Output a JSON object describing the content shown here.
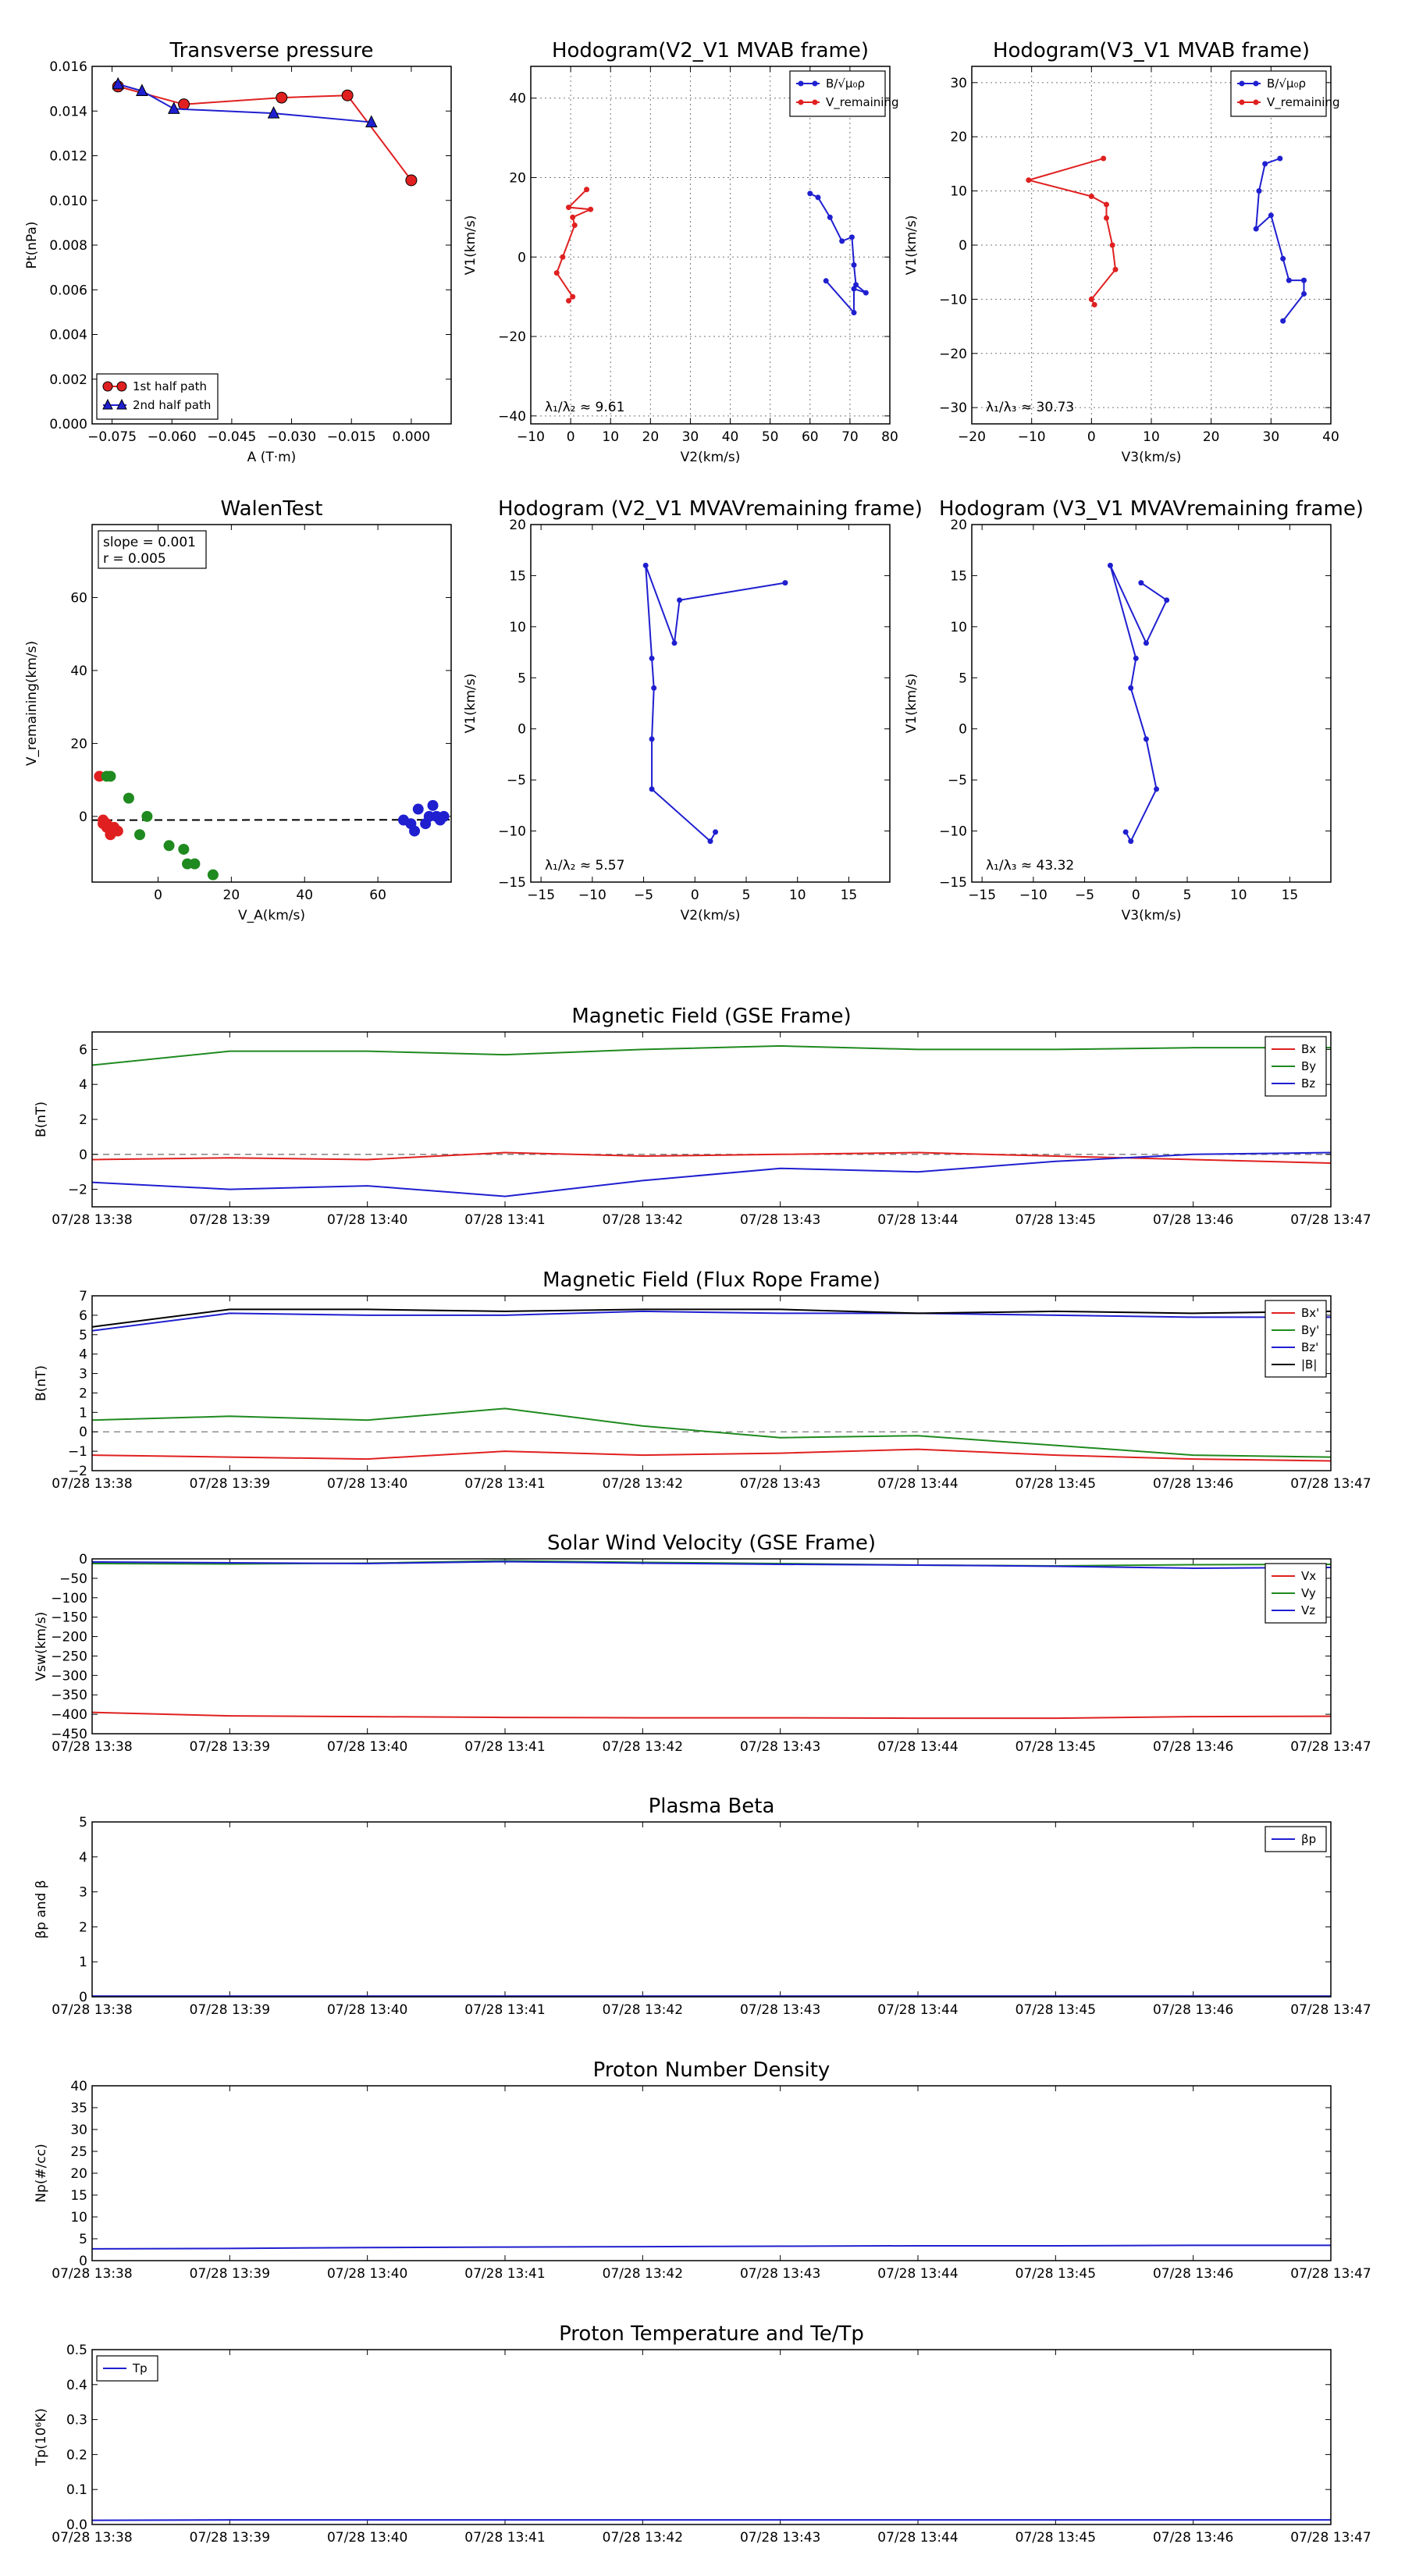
{
  "chart_data": [
    {
      "id": "pt",
      "type": "scatter",
      "title": "Transverse pressure",
      "xlabel": "A (T·m)",
      "ylabel": "Pt(nPa)",
      "xlim": [
        -0.08,
        0.01
      ],
      "ylim": [
        0,
        0.016
      ],
      "xticks": [
        -0.075,
        -0.06,
        -0.045,
        -0.03,
        -0.015,
        0
      ],
      "xtick_labels": [
        "−0.075",
        "−0.060",
        "−0.045",
        "−0.030",
        "−0.015",
        "0.000"
      ],
      "yticks": [
        0,
        0.002,
        0.004,
        0.006,
        0.008,
        0.01,
        0.012,
        0.014,
        0.016
      ],
      "ytick_labels": [
        "0.000",
        "0.002",
        "0.004",
        "0.006",
        "0.008",
        "0.010",
        "0.012",
        "0.014",
        "0.016"
      ],
      "grid": false,
      "legend_position": "lower-left",
      "series": [
        {
          "name": "1st half path",
          "color": "#e02020",
          "marker": "circle",
          "x": [
            -0.0735,
            -0.057,
            -0.0325,
            -0.016,
            0.0
          ],
          "y": [
            0.0151,
            0.0143,
            0.0146,
            0.0147,
            0.0109
          ]
        },
        {
          "name": "2nd half path",
          "color": "#1f1fd0",
          "marker": "triangle",
          "x": [
            -0.0735,
            -0.0675,
            -0.0595,
            -0.0345,
            -0.01
          ],
          "y": [
            0.0152,
            0.0149,
            0.0141,
            0.0139,
            0.0135
          ]
        }
      ]
    },
    {
      "id": "h21",
      "type": "line",
      "title": "Hodogram(V2_V1 MVAB frame)",
      "xlabel": "V2(km/s)",
      "ylabel": "V1(km/s)",
      "xlim": [
        -10,
        80
      ],
      "ylim": [
        -42,
        48
      ],
      "xticks": [
        -10,
        0,
        10,
        20,
        30,
        40,
        50,
        60,
        70,
        80
      ],
      "xtick_labels": [
        "−10",
        "0",
        "10",
        "20",
        "30",
        "40",
        "50",
        "60",
        "70",
        "80"
      ],
      "yticks": [
        -40,
        -20,
        0,
        20,
        40
      ],
      "ytick_labels": [
        "−40",
        "−20",
        "0",
        "20",
        "40"
      ],
      "grid": true,
      "legend_position": "upper-right",
      "annotation": "λ₁/λ₂ ≈ 9.61",
      "series": [
        {
          "name": "B/√μ₀ρ",
          "color": "#1f1fd0",
          "x": [
            60,
            62,
            65,
            68,
            70.5,
            71,
            71.5,
            74,
            71,
            71,
            64
          ],
          "y": [
            16,
            15,
            10,
            4,
            5,
            -2,
            -7,
            -9,
            -8,
            -14,
            -6
          ]
        },
        {
          "name": "V_remaining",
          "color": "#e02020",
          "x": [
            4,
            -0.5,
            5,
            0.5,
            1,
            -2,
            -3.5,
            0.5,
            -0.5
          ],
          "y": [
            17,
            12.5,
            12,
            10,
            8,
            0,
            -4,
            -10,
            -11
          ]
        }
      ]
    },
    {
      "id": "h31",
      "type": "line",
      "title": "Hodogram(V3_V1 MVAB frame)",
      "xlabel": "V3(km/s)",
      "ylabel": "V1(km/s)",
      "xlim": [
        -20,
        40
      ],
      "ylim": [
        -33,
        33
      ],
      "xticks": [
        -20,
        -10,
        0,
        10,
        20,
        30,
        40
      ],
      "xtick_labels": [
        "−20",
        "−10",
        "0",
        "10",
        "20",
        "30",
        "40"
      ],
      "yticks": [
        -30,
        -20,
        -10,
        0,
        10,
        20,
        30
      ],
      "ytick_labels": [
        "−30",
        "−20",
        "−10",
        "0",
        "10",
        "20",
        "30"
      ],
      "grid": true,
      "legend_position": "upper-right",
      "annotation": "λ₁/λ₃ ≈ 30.73",
      "series": [
        {
          "name": "B/√μ₀ρ",
          "color": "#1f1fd0",
          "x": [
            31.5,
            29,
            28,
            27.5,
            30,
            32,
            33,
            35.5,
            35.5,
            32
          ],
          "y": [
            16,
            15,
            10,
            3,
            5.5,
            -2.5,
            -6.5,
            -6.5,
            -9,
            -14
          ]
        },
        {
          "name": "V_remaining",
          "color": "#e02020",
          "x": [
            2,
            -10.5,
            0,
            2.5,
            2.5,
            3.5,
            4,
            0,
            0.5
          ],
          "y": [
            16,
            12,
            9,
            7.5,
            5,
            0,
            -4.5,
            -10,
            -11
          ]
        }
      ]
    },
    {
      "id": "walen",
      "type": "scatter",
      "title": "WalenTest",
      "xlabel": "V_A(km/s)",
      "ylabel": "V_remaining(km/s)",
      "xlim": [
        -18,
        80
      ],
      "ylim": [
        -18,
        80
      ],
      "xticks": [
        0,
        20,
        40,
        60
      ],
      "xtick_labels": [
        "0",
        "20",
        "40",
        "60"
      ],
      "yticks": [
        0,
        20,
        40,
        60
      ],
      "ytick_labels": [
        "0",
        "20",
        "40",
        "60"
      ],
      "grid": false,
      "stats": [
        "slope = 0.001",
        "r = 0.005"
      ],
      "fit_line": {
        "slope": 0.001,
        "intercept": -1
      },
      "series": [
        {
          "color": "#e02020",
          "x": [
            -16,
            -15,
            -14,
            -13,
            -13,
            -12,
            -12,
            -11,
            -15,
            -14
          ],
          "y": [
            11,
            -2,
            -3,
            -4,
            -5,
            -3,
            -4,
            -4,
            -1,
            -2
          ]
        },
        {
          "color": "#1f8a1f",
          "x": [
            -14,
            -13,
            -8,
            -5,
            -3,
            3,
            7,
            8,
            10,
            15
          ],
          "y": [
            11,
            11,
            5,
            -5,
            0,
            -8,
            -9,
            -13,
            -13,
            -16
          ]
        },
        {
          "color": "#1f1fd0",
          "x": [
            67,
            69,
            70,
            71,
            73,
            74,
            75,
            76,
            77,
            78
          ],
          "y": [
            -1,
            -2,
            -4,
            2,
            -2,
            0,
            3,
            0,
            -1,
            0
          ]
        }
      ]
    },
    {
      "id": "hr21",
      "type": "line",
      "title": "Hodogram (V2_V1 MVAVremaining frame)",
      "xlabel": "V2(km/s)",
      "ylabel": "V1(km/s)",
      "xlim": [
        -16,
        19
      ],
      "ylim": [
        -15,
        20
      ],
      "xticks": [
        -15,
        -10,
        -5,
        0,
        5,
        10,
        15
      ],
      "xtick_labels": [
        "−15",
        "−10",
        "−5",
        "0",
        "5",
        "10",
        "15"
      ],
      "yticks": [
        -15,
        -10,
        -5,
        0,
        5,
        10,
        15,
        20
      ],
      "ytick_labels": [
        "−15",
        "−10",
        "−5",
        "0",
        "5",
        "10",
        "15",
        "20"
      ],
      "grid": false,
      "annotation": "λ₁/λ₂ ≈ 5.57",
      "series": [
        {
          "color": "#1f1fd0",
          "x": [
            8.8,
            -1.5,
            -2,
            -4.8,
            -4.2,
            -4,
            -4.2,
            -4.2,
            1.5,
            2
          ],
          "y": [
            14.3,
            12.6,
            8.4,
            16,
            6.9,
            4,
            -1,
            -5.9,
            -11,
            -10.1
          ]
        }
      ]
    },
    {
      "id": "hr31",
      "type": "line",
      "title": "Hodogram (V3_V1 MVAVremaining frame)",
      "xlabel": "V3(km/s)",
      "ylabel": "V1(km/s)",
      "xlim": [
        -16,
        19
      ],
      "ylim": [
        -15,
        20
      ],
      "xticks": [
        -15,
        -10,
        -5,
        0,
        5,
        10,
        15
      ],
      "xtick_labels": [
        "−15",
        "−10",
        "−5",
        "0",
        "5",
        "10",
        "15"
      ],
      "yticks": [
        -15,
        -10,
        -5,
        0,
        5,
        10,
        15,
        20
      ],
      "ytick_labels": [
        "−15",
        "−10",
        "−5",
        "0",
        "5",
        "10",
        "15",
        "20"
      ],
      "grid": false,
      "annotation": "λ₁/λ₃ ≈ 43.32",
      "series": [
        {
          "color": "#1f1fd0",
          "x": [
            0.5,
            3,
            1,
            -2.5,
            0,
            -0.5,
            1,
            2,
            -0.5,
            -1
          ],
          "y": [
            14.3,
            12.6,
            8.4,
            16,
            6.9,
            4,
            -1,
            -5.9,
            -11,
            -10.1
          ]
        }
      ]
    },
    {
      "id": "bgse",
      "type": "line",
      "title": "Magnetic Field (GSE Frame)",
      "ylabel": "B(nT)",
      "ylim": [
        -3,
        7
      ],
      "yticks": [
        -2,
        0,
        2,
        4,
        6
      ],
      "ytick_labels": [
        "−2",
        "0",
        "2",
        "4",
        "6"
      ],
      "x": [
        "07/28 13:38",
        "07/28 13:39",
        "07/28 13:40",
        "07/28 13:41",
        "07/28 13:42",
        "07/28 13:43",
        "07/28 13:44",
        "07/28 13:45",
        "07/28 13:46",
        "07/28 13:47"
      ],
      "zero_line": true,
      "legend_position": "upper-right",
      "series": [
        {
          "name": "Bx",
          "color": "#e02020",
          "values": [
            -0.3,
            -0.2,
            -0.3,
            0.1,
            -0.1,
            0.0,
            0.1,
            -0.1,
            -0.3,
            -0.5
          ]
        },
        {
          "name": "By",
          "color": "#1f8a1f",
          "values": [
            5.1,
            5.9,
            5.9,
            5.7,
            6.0,
            6.2,
            6.0,
            6.0,
            6.1,
            6.1
          ]
        },
        {
          "name": "Bz",
          "color": "#1f1fd0",
          "values": [
            -1.6,
            -2.0,
            -1.8,
            -2.4,
            -1.5,
            -0.8,
            -1.0,
            -0.4,
            0.0,
            0.1
          ]
        }
      ]
    },
    {
      "id": "bfr",
      "type": "line",
      "title": "Magnetic Field (Flux Rope Frame)",
      "ylabel": "B(nT)",
      "ylim": [
        -2,
        7
      ],
      "yticks": [
        -2,
        -1,
        0,
        1,
        2,
        3,
        4,
        5,
        6,
        7
      ],
      "ytick_labels": [
        "−2",
        "−1",
        "0",
        "1",
        "2",
        "3",
        "4",
        "5",
        "6",
        "7"
      ],
      "x": [
        "07/28 13:38",
        "07/28 13:39",
        "07/28 13:40",
        "07/28 13:41",
        "07/28 13:42",
        "07/28 13:43",
        "07/28 13:44",
        "07/28 13:45",
        "07/28 13:46",
        "07/28 13:47"
      ],
      "zero_line": true,
      "legend_position": "upper-right",
      "series": [
        {
          "name": "Bx'",
          "color": "#e02020",
          "values": [
            -1.2,
            -1.3,
            -1.4,
            -1.0,
            -1.2,
            -1.1,
            -0.9,
            -1.2,
            -1.4,
            -1.5
          ]
        },
        {
          "name": "By'",
          "color": "#1f8a1f",
          "values": [
            0.6,
            0.8,
            0.6,
            1.2,
            0.3,
            -0.3,
            -0.2,
            -0.7,
            -1.2,
            -1.3
          ]
        },
        {
          "name": "Bz'",
          "color": "#1f1fd0",
          "values": [
            5.2,
            6.1,
            6.0,
            6.0,
            6.2,
            6.1,
            6.1,
            6.0,
            5.9,
            5.9
          ]
        },
        {
          "name": "|B|",
          "color": "#000000",
          "values": [
            5.4,
            6.3,
            6.3,
            6.2,
            6.3,
            6.3,
            6.1,
            6.2,
            6.1,
            6.2
          ]
        }
      ]
    },
    {
      "id": "vsw",
      "type": "line",
      "title": "Solar Wind Velocity (GSE Frame)",
      "ylabel": "Vsw(km/s)",
      "ylim": [
        -450,
        0
      ],
      "yticks": [
        -450,
        -400,
        -350,
        -300,
        -250,
        -200,
        -150,
        -100,
        -50,
        0
      ],
      "ytick_labels": [
        "−450",
        "−400",
        "−350",
        "−300",
        "−250",
        "−200",
        "−150",
        "−100",
        "−50",
        "0"
      ],
      "x": [
        "07/28 13:38",
        "07/28 13:39",
        "07/28 13:40",
        "07/28 13:41",
        "07/28 13:42",
        "07/28 13:43",
        "07/28 13:44",
        "07/28 13:45",
        "07/28 13:46",
        "07/28 13:47"
      ],
      "legend_position": "upper-right",
      "series": [
        {
          "name": "Vx",
          "color": "#e02020",
          "values": [
            -395,
            -404,
            -406,
            -408,
            -409,
            -409,
            -410,
            -410,
            -406,
            -405
          ]
        },
        {
          "name": "Vy",
          "color": "#1f8a1f",
          "values": [
            -12,
            -13,
            -11,
            -5,
            -9,
            -12,
            -16,
            -18,
            -15,
            -14
          ]
        },
        {
          "name": "Vz",
          "color": "#1f1fd0",
          "values": [
            -8,
            -10,
            -12,
            -7,
            -11,
            -14,
            -16,
            -19,
            -24,
            -22
          ]
        }
      ]
    },
    {
      "id": "beta",
      "type": "line",
      "title": "Plasma Beta",
      "ylabel": "βp and β",
      "ylim": [
        0,
        5
      ],
      "yticks": [
        0,
        1,
        2,
        3,
        4,
        5
      ],
      "ytick_labels": [
        "0",
        "1",
        "2",
        "3",
        "4",
        "5"
      ],
      "x": [
        "07/28 13:38",
        "07/28 13:39",
        "07/28 13:40",
        "07/28 13:41",
        "07/28 13:42",
        "07/28 13:43",
        "07/28 13:44",
        "07/28 13:45",
        "07/28 13:46",
        "07/28 13:47"
      ],
      "legend_position": "upper-right",
      "series": [
        {
          "name": "βp",
          "color": "#1f1fd0",
          "values": [
            0.02,
            0.02,
            0.02,
            0.02,
            0.02,
            0.02,
            0.02,
            0.02,
            0.02,
            0.02
          ]
        }
      ]
    },
    {
      "id": "np",
      "type": "line",
      "title": "Proton Number Density",
      "ylabel": "Np(#/cc)",
      "ylim": [
        0,
        40
      ],
      "yticks": [
        0,
        5,
        10,
        15,
        20,
        25,
        30,
        35,
        40
      ],
      "ytick_labels": [
        "0",
        "5",
        "10",
        "15",
        "20",
        "25",
        "30",
        "35",
        "40"
      ],
      "x": [
        "07/28 13:38",
        "07/28 13:39",
        "07/28 13:40",
        "07/28 13:41",
        "07/28 13:42",
        "07/28 13:43",
        "07/28 13:44",
        "07/28 13:45",
        "07/28 13:46",
        "07/28 13:47"
      ],
      "series": [
        {
          "color": "#1f1fd0",
          "values": [
            2.7,
            2.8,
            3.0,
            3.1,
            3.2,
            3.3,
            3.4,
            3.4,
            3.5,
            3.5
          ]
        }
      ]
    },
    {
      "id": "tp",
      "type": "line",
      "title": "Proton Temperature and Te/Tp",
      "ylabel": "Tp(10⁶K)",
      "ylim": [
        0,
        0.5
      ],
      "yticks": [
        0,
        0.1,
        0.2,
        0.3,
        0.4,
        0.5
      ],
      "ytick_labels": [
        "0.0",
        "0.1",
        "0.2",
        "0.3",
        "0.4",
        "0.5"
      ],
      "x": [
        "07/28 13:38",
        "07/28 13:39",
        "07/28 13:40",
        "07/28 13:41",
        "07/28 13:42",
        "07/28 13:43",
        "07/28 13:44",
        "07/28 13:45",
        "07/28 13:46",
        "07/28 13:47"
      ],
      "legend_position": "upper-left",
      "series": [
        {
          "name": "Tp",
          "color": "#1f1fd0",
          "values": [
            0.012,
            0.013,
            0.013,
            0.013,
            0.013,
            0.013,
            0.013,
            0.013,
            0.013,
            0.013
          ]
        }
      ]
    }
  ]
}
